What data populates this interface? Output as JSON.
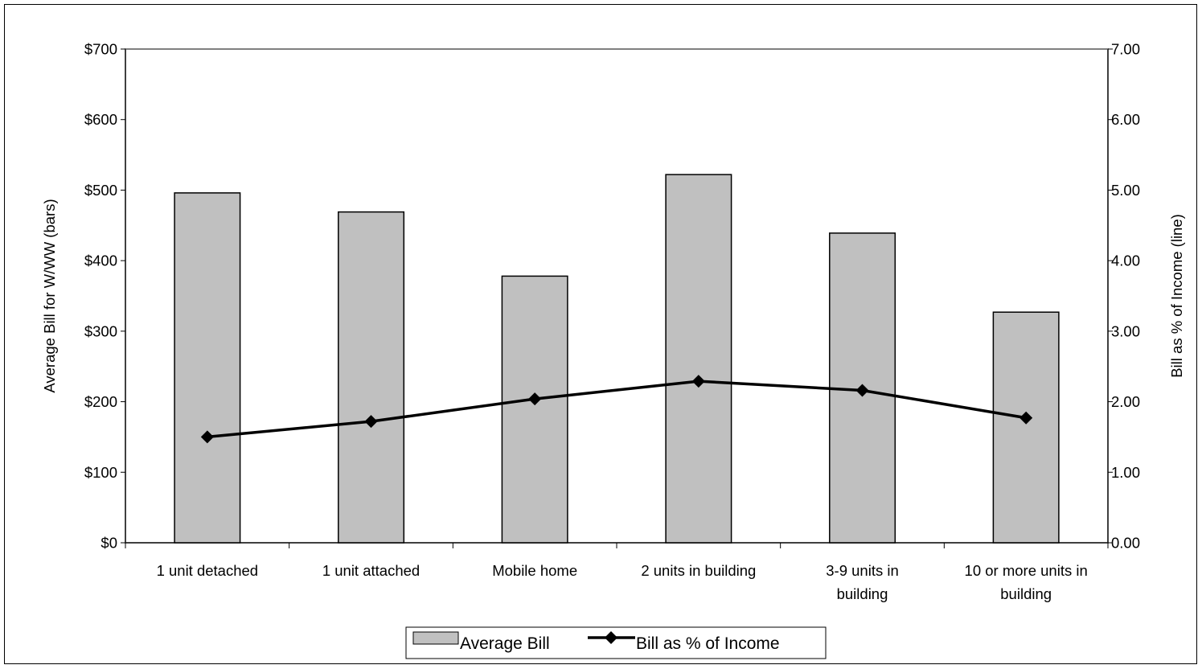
{
  "chart_data": {
    "type": "bar",
    "categories": [
      [
        "1 unit detached"
      ],
      [
        "1 unit attached"
      ],
      [
        "Mobile home"
      ],
      [
        "2 units in building"
      ],
      [
        "3-9 units in",
        "building"
      ],
      [
        "10 or more units in",
        "building"
      ]
    ],
    "series": [
      {
        "name": "Average Bill",
        "type": "bar",
        "axis": "left",
        "values": [
          496,
          469,
          378,
          522,
          439,
          327
        ],
        "color": "#c0c0c0"
      },
      {
        "name": "Bill as % of Income",
        "type": "line",
        "axis": "right",
        "values": [
          1.5,
          1.72,
          2.04,
          2.29,
          2.16,
          1.77
        ],
        "color": "#000000",
        "marker": "diamond"
      }
    ],
    "y_left": {
      "label": "Average Bill for W/WW (bars)",
      "min": 0,
      "max": 700,
      "step": 100,
      "tick_labels": [
        "$0",
        "$100",
        "$200",
        "$300",
        "$400",
        "$500",
        "$600",
        "$700"
      ]
    },
    "y_right": {
      "label": "Bill as % of Income (line)",
      "min": 0,
      "max": 7,
      "step": 1,
      "tick_labels": [
        "0.00",
        "1.00",
        "2.00",
        "3.00",
        "4.00",
        "5.00",
        "6.00",
        "7.00"
      ]
    },
    "grid": false,
    "plot_area_border_color": "#808080",
    "legend": {
      "position": "bottom",
      "entries": [
        "Average Bill",
        "Bill as % of Income"
      ]
    }
  }
}
